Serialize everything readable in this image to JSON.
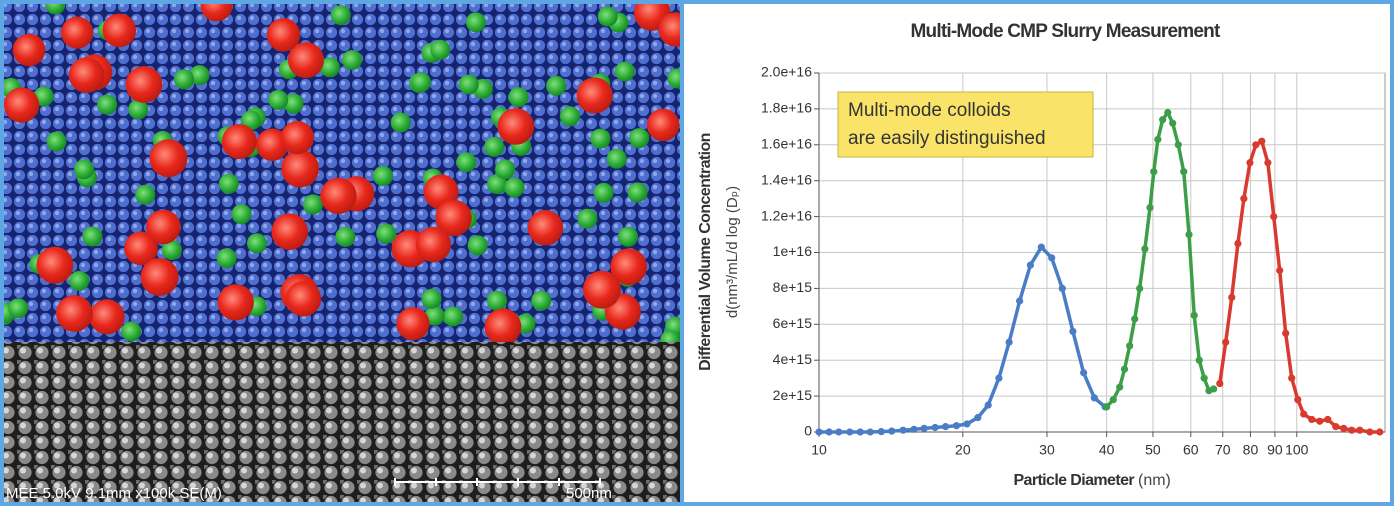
{
  "image_caption": {
    "settings": "MEE 5.0kV 9.1mm x100k SE(M)",
    "scale": "500nm"
  },
  "chart_data": {
    "type": "line",
    "title": "Multi-Mode CMP Slurry Measurement",
    "annotation": [
      "Multi-mode colloids",
      "are easily distinguished"
    ],
    "x_label": "Particle Diameter",
    "x_unit": "(nm)",
    "y_label": "Differential Volume Concentration",
    "y_unit": "d(nm³/mL/d log (Dₚ)",
    "x_log": true,
    "grid": true,
    "xlim": [
      10,
      153
    ],
    "xticks": [
      10,
      20,
      30,
      40,
      50,
      60,
      70,
      80,
      90,
      100
    ],
    "ylim": [
      0,
      2e+16
    ],
    "yticks": [
      0,
      {
        "value": 2000000000000000.0,
        "label": "2e+15"
      },
      {
        "value": 4000000000000000.0,
        "label": "4e+15"
      },
      {
        "value": 6000000000000000.0,
        "label": "6e+15"
      },
      {
        "value": 8000000000000000.0,
        "label": "8e+15"
      },
      {
        "value": 1e+16,
        "label": "1e+16"
      },
      {
        "value": 1.2e+16,
        "label": "1.2e+16"
      },
      {
        "value": 1.4e+16,
        "label": "1.4e+16"
      },
      {
        "value": 1.6e+16,
        "label": "1.6e+16"
      },
      {
        "value": 1.8e+16,
        "label": "1.8e+16"
      },
      {
        "value": 2e+16,
        "label": "2.0e+16"
      }
    ],
    "series": [
      {
        "color": "#4a7cc8",
        "x": [
          10,
          10.5,
          11,
          11.6,
          12.2,
          12.8,
          13.5,
          14.2,
          15,
          15.8,
          16.6,
          17.5,
          18.4,
          19.4,
          20.4,
          21.5,
          22.6,
          23.8,
          25,
          26.3,
          27.7,
          29.2,
          30.7,
          32.3,
          34,
          35.8,
          37.7,
          39.7
        ],
        "values": [
          0,
          0,
          0,
          0,
          0,
          0,
          20000000000000.0,
          50000000000000.0,
          100000000000000.0,
          150000000000000.0,
          200000000000000.0,
          250000000000000.0,
          300000000000000.0,
          350000000000000.0,
          450000000000000.0,
          800000000000000.0,
          1500000000000000.0,
          3000000000000000.0,
          5000000000000000.0,
          7300000000000000.0,
          9300000000000000.0,
          1.03e+16,
          9700000000000000.0,
          8000000000000000.0,
          5600000000000000.0,
          3300000000000000.0,
          1900000000000000.0,
          1400000000000000.0
        ]
      },
      {
        "color": "#3d9e48",
        "x": [
          40,
          41.3,
          42.6,
          43.6,
          44.7,
          45.8,
          46.9,
          48.1,
          49.3,
          50.2,
          51.2,
          52.4,
          53.7,
          55,
          56.5,
          58,
          59.5,
          61,
          62.5,
          64,
          65.5,
          67
        ],
        "values": [
          1400000000000000.0,
          1800000000000000.0,
          2500000000000000.0,
          3500000000000000.0,
          4800000000000000.0,
          6300000000000000.0,
          8000000000000000.0,
          1.02e+16,
          1.25e+16,
          1.45e+16,
          1.63e+16,
          1.74e+16,
          1.78e+16,
          1.72e+16,
          1.6e+16,
          1.45e+16,
          1.1e+16,
          6500000000000000.0,
          4000000000000000.0,
          3000000000000000.0,
          2300000000000000.0,
          2400000000000000.0
        ]
      },
      {
        "color": "#d93a30",
        "x": [
          69,
          71,
          73.1,
          75.3,
          77.5,
          79.8,
          82.1,
          84.5,
          87,
          89.5,
          92.1,
          94.8,
          97.6,
          100.5,
          103.4,
          107.5,
          111.7,
          116.1,
          120.7,
          125.4,
          130.3,
          135.5,
          142.2,
          149.2
        ],
        "values": [
          2700000000000000.0,
          5000000000000000.0,
          7500000000000000.0,
          1.05e+16,
          1.3e+16,
          1.5e+16,
          1.6e+16,
          1.62e+16,
          1.5e+16,
          1.2e+16,
          9000000000000000.0,
          5500000000000000.0,
          3000000000000000.0,
          1800000000000000.0,
          1000000000000000.0,
          700000000000000.0,
          600000000000000.0,
          700000000000000.0,
          300000000000000.0,
          200000000000000.0,
          100000000000000.0,
          100000000000000.0,
          0,
          0
        ]
      }
    ]
  }
}
